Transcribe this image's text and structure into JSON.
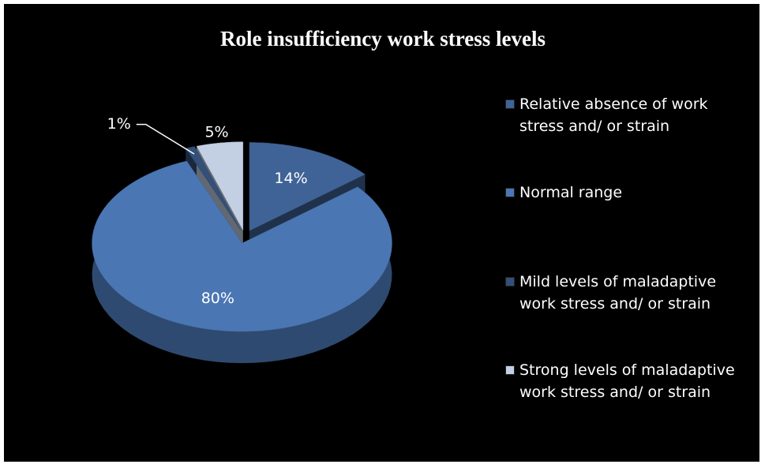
{
  "chart_data": {
    "type": "pie",
    "title": "Role insufficiency work stress levels",
    "categories": [
      "Relative absence of work stress and/ or strain",
      "Normal range",
      "Mild levels of maladaptive work stress and/ or strain",
      "Strong levels of maladaptive work stress and/ or strain"
    ],
    "values": [
      14,
      80,
      1,
      5
    ],
    "value_labels": [
      "14%",
      "80%",
      "1%",
      "5%"
    ],
    "colors": [
      "#3f6396",
      "#4a77b4",
      "#33507a",
      "#c3d0e4"
    ],
    "legend": "right"
  }
}
